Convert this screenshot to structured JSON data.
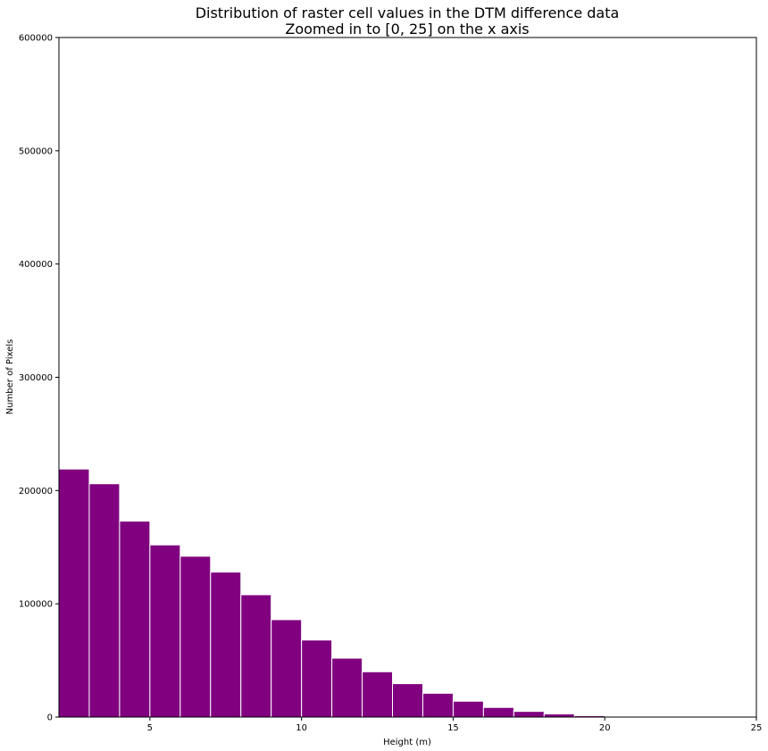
{
  "chart_data": {
    "type": "bar",
    "title_line1": "Distribution of raster cell values in the DTM difference data",
    "title_line2": "Zoomed in to [0, 25] on the x axis",
    "xlabel": "Height (m)",
    "ylabel": "Number of Pixels",
    "xlim": [
      2,
      25
    ],
    "ylim": [
      0,
      600000
    ],
    "xticks": [
      5,
      10,
      15,
      20,
      25
    ],
    "yticks": [
      0,
      100000,
      200000,
      300000,
      400000,
      500000,
      600000
    ],
    "bar_color": "#800080",
    "edge_color": "#ffffff",
    "grid": false,
    "bins": [
      {
        "x0": 2,
        "x1": 3,
        "value": 219000
      },
      {
        "x0": 3,
        "x1": 4,
        "value": 206000
      },
      {
        "x0": 4,
        "x1": 5,
        "value": 173000
      },
      {
        "x0": 5,
        "x1": 6,
        "value": 152000
      },
      {
        "x0": 6,
        "x1": 7,
        "value": 142000
      },
      {
        "x0": 7,
        "x1": 8,
        "value": 128000
      },
      {
        "x0": 8,
        "x1": 9,
        "value": 108000
      },
      {
        "x0": 9,
        "x1": 10,
        "value": 86000
      },
      {
        "x0": 10,
        "x1": 11,
        "value": 68000
      },
      {
        "x0": 11,
        "x1": 12,
        "value": 52000
      },
      {
        "x0": 12,
        "x1": 13,
        "value": 40000
      },
      {
        "x0": 13,
        "x1": 14,
        "value": 29500
      },
      {
        "x0": 14,
        "x1": 15,
        "value": 21000
      },
      {
        "x0": 15,
        "x1": 16,
        "value": 14000
      },
      {
        "x0": 16,
        "x1": 17,
        "value": 8500
      },
      {
        "x0": 17,
        "x1": 18,
        "value": 5000
      },
      {
        "x0": 18,
        "x1": 19,
        "value": 2800
      },
      {
        "x0": 19,
        "x1": 20,
        "value": 1200
      },
      {
        "x0": 20,
        "x1": 21,
        "value": 400
      },
      {
        "x0": 21,
        "x1": 22,
        "value": 150
      },
      {
        "x0": 22,
        "x1": 23,
        "value": 60
      },
      {
        "x0": 23,
        "x1": 24,
        "value": 20
      },
      {
        "x0": 24,
        "x1": 25,
        "value": 10
      }
    ]
  }
}
